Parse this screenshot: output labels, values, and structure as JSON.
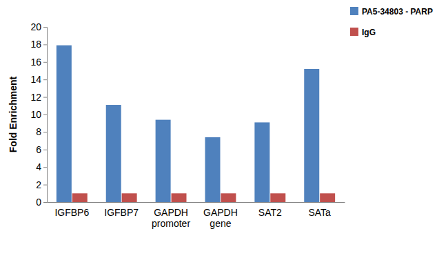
{
  "chart_data": {
    "type": "bar",
    "y_label": "Fold Enrichment",
    "categories": [
      "IGFBP6",
      "IGFBP7",
      "GAPDH promoter",
      "GAPDH gene",
      "SAT2",
      "SATa"
    ],
    "series": [
      {
        "name": "PA5-34803 - PARP",
        "color": "#4f81bd",
        "values": [
          17.9,
          11.1,
          9.4,
          7.4,
          9.1,
          15.2
        ]
      },
      {
        "name": "IgG",
        "color": "#c0504d",
        "values": [
          1,
          1,
          1,
          1,
          1,
          1
        ]
      }
    ],
    "ylim": [
      0,
      20
    ],
    "yticks": [
      0,
      2,
      4,
      6,
      8,
      10,
      12,
      14,
      16,
      18,
      20
    ],
    "grid": false,
    "legend": "top-right"
  }
}
